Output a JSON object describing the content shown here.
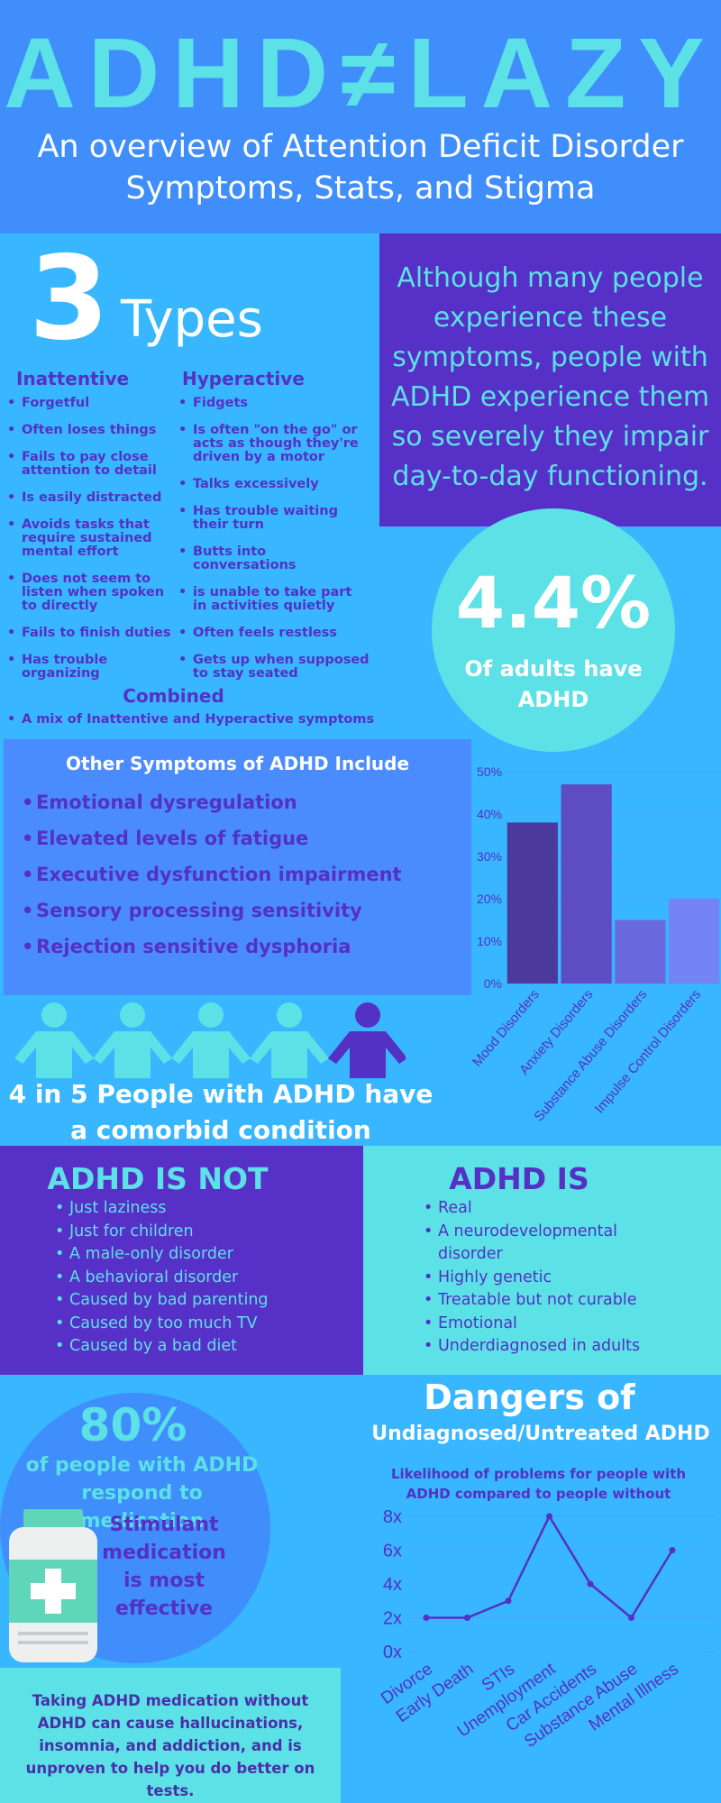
{
  "header": {
    "title": "ADHD≠LAZY",
    "subtitle": "An overview of Attention Deficit Disorder Symptoms, Stats, and Stigma"
  },
  "types": {
    "number": "3",
    "label": "Types",
    "inattentive": {
      "title": "Inattentive",
      "items": [
        "Forgetful",
        "Often loses things",
        "Fails to pay close attention to detail",
        "Is easily distracted",
        "Avoids tasks that require sustained mental effort",
        "Does not seem to listen when spoken to directly",
        "Fails to finish duties",
        "Has trouble organizing"
      ]
    },
    "hyperactive": {
      "title": "Hyperactive",
      "items": [
        "Fidgets",
        "Is often \"on the go\" or acts as though they're driven by a motor",
        "Talks excessively",
        "Has trouble waiting their turn",
        "Butts into conversations",
        "is unable to take part in activities quietly",
        "Often feels restless",
        "Gets up when supposed to stay seated"
      ]
    },
    "combined": {
      "title": "Combined",
      "items": [
        "A mix of Inattentive and Hyperactive symptoms"
      ]
    }
  },
  "callout": "Although many people experience these symptoms, people with ADHD experience them so severely they impair day-to-day functioning.",
  "stat": {
    "value": "4.4%",
    "text": "Of adults have ADHD"
  },
  "other_symptoms": {
    "title": "Other Symptoms of ADHD Include",
    "items": [
      "Emotional dysregulation",
      "Elevated levels of fatigue",
      "Executive dysfunction impairment",
      "Sensory processing sensitivity",
      "Rejection sensitive dysphoria"
    ]
  },
  "comorbid": "4 in 5 People with ADHD have a comorbid condition",
  "is_not": {
    "title": "ADHD IS NOT",
    "items": [
      "Just laziness",
      "Just for children",
      "A male-only disorder",
      "A behavioral disorder",
      "Caused by bad parenting",
      "Caused by too much TV",
      "Caused by a bad diet"
    ]
  },
  "is": {
    "title": "ADHD IS",
    "items": [
      "Real",
      "A neurodevelopmental disorder",
      "Highly genetic",
      "Treatable but not curable",
      "Emotional",
      "Underdiagnosed in adults"
    ]
  },
  "medication": {
    "value": "80%",
    "text": "of people with ADHD respond to medication",
    "note": "Stimulant medication is most effective"
  },
  "warning": "Taking ADHD medication without ADHD can cause hallucinations, insomnia, and addiction, and is unproven to help you do better on tests.",
  "dangers": {
    "title": "Dangers of",
    "subtitle": "Undiagnosed/Untreated ADHD"
  },
  "chart_data": [
    {
      "type": "bar",
      "categories": [
        "Mood Disorders",
        "Anxiety Disorders",
        "Substance Abuse Disorders",
        "Impulse Control Disorders"
      ],
      "values": [
        38,
        47,
        15,
        20
      ],
      "colors": [
        "#4b3a9c",
        "#5d4cc2",
        "#6a6ade",
        "#7484f5"
      ],
      "ylim": [
        0,
        50
      ],
      "yticks": [
        {
          "value": 0,
          "label": "0%"
        },
        {
          "value": 10,
          "label": "10%"
        },
        {
          "value": 20,
          "label": "20%"
        },
        {
          "value": 30,
          "label": "30%"
        },
        {
          "value": 40,
          "label": "40%"
        },
        {
          "value": 50,
          "label": "50%"
        }
      ],
      "grid": true
    },
    {
      "type": "line",
      "title": "Likelihood of  problems for people with ADHD compared to people without",
      "categories": [
        "Divorce",
        "Early Death",
        "STIs",
        "Unemployment",
        "Car Accidents",
        "Substance Abuse",
        "Mental Illness"
      ],
      "values": [
        2,
        2,
        3,
        8,
        4,
        2,
        6
      ],
      "color": "#5431c4",
      "ylim": [
        0,
        8
      ],
      "yticks": [
        {
          "value": 0,
          "label": "0x"
        },
        {
          "value": 2,
          "label": "2x"
        },
        {
          "value": 4,
          "label": "4x"
        },
        {
          "value": 6,
          "label": "6x"
        },
        {
          "value": 8,
          "label": "8x"
        }
      ],
      "grid": true
    }
  ]
}
